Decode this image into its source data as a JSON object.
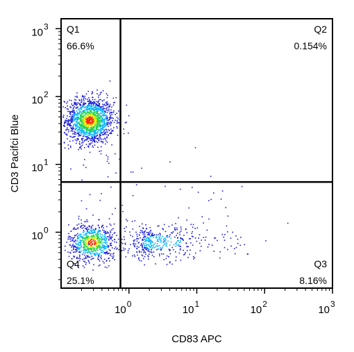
{
  "chart_data": {
    "type": "scatter",
    "subtype": "flow-cytometry-density-dot-plot",
    "xlabel": "CD83 APC",
    "ylabel": "CD3 Pacifci Blue",
    "x_scale": "log",
    "y_scale": "log",
    "xlim": [
      0.1,
      1000
    ],
    "ylim": [
      0.15,
      1400
    ],
    "x_ticks": [
      {
        "base": "10",
        "exp": "0",
        "value": 1
      },
      {
        "base": "10",
        "exp": "1",
        "value": 10
      },
      {
        "base": "10",
        "exp": "2",
        "value": 100
      },
      {
        "base": "10",
        "exp": "3",
        "value": 1000
      }
    ],
    "y_ticks": [
      {
        "base": "10",
        "exp": "0",
        "value": 1
      },
      {
        "base": "10",
        "exp": "1",
        "value": 10
      },
      {
        "base": "10",
        "exp": "2",
        "value": 100
      },
      {
        "base": "10",
        "exp": "3",
        "value": 1000
      }
    ],
    "gates": {
      "x": 0.75,
      "y": 5.5
    },
    "quadrants": [
      {
        "id": "Q1",
        "name": "Q1",
        "percent": "66.6%",
        "position": "top-left"
      },
      {
        "id": "Q2",
        "name": "Q2",
        "percent": "0.154%",
        "position": "top-right"
      },
      {
        "id": "Q3",
        "name": "Q3",
        "percent": "8.16%",
        "position": "bottom-right"
      },
      {
        "id": "Q4",
        "name": "Q4",
        "percent": "25.1%",
        "position": "bottom-left"
      }
    ],
    "populations": [
      {
        "center_x": 0.26,
        "center_y": 45,
        "spread_x_decades": 0.18,
        "spread_y_decades": 0.17,
        "count": 1500
      },
      {
        "center_x": 0.28,
        "center_y": 0.72,
        "spread_x_decades": 0.17,
        "spread_y_decades": 0.14,
        "count": 750
      },
      {
        "center_x": 2.2,
        "center_y": 0.72,
        "spread_x_decades": 0.55,
        "spread_y_decades": 0.13,
        "count": 420
      }
    ],
    "density_colors": [
      "#1a1ad8",
      "#00b4ff",
      "#23d44f",
      "#d8e800",
      "#ff2a00"
    ],
    "grid": false,
    "legend": "none"
  }
}
